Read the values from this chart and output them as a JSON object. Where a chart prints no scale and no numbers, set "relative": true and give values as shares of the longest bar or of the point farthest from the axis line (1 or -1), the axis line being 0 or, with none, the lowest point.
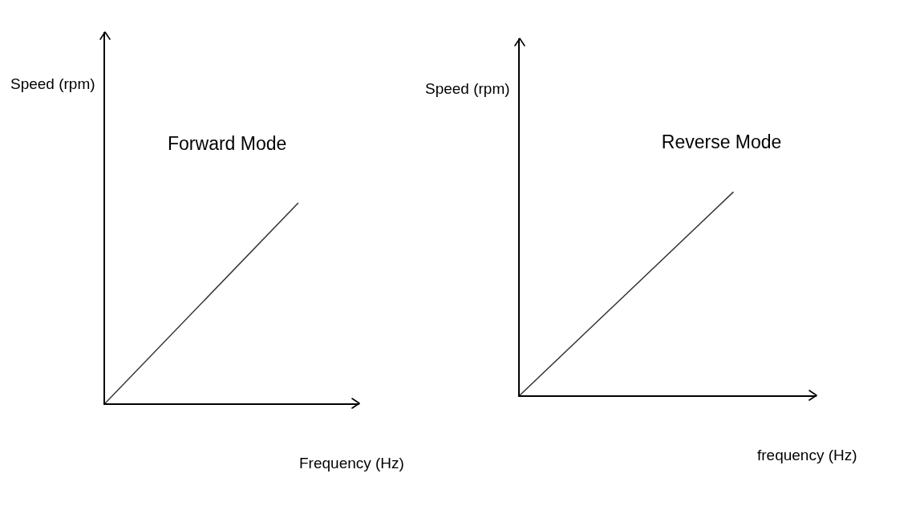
{
  "chart_data": [
    {
      "type": "line",
      "title": "Forward Mode",
      "xlabel": "Frequency (Hz)",
      "ylabel": "Speed (rpm)",
      "categories": [
        null,
        null
      ],
      "series": [
        {
          "color": "#333333",
          "values": [
            0,
            1
          ]
        }
      ],
      "relative": true
    },
    {
      "type": "line",
      "title": "Reverse Mode",
      "xlabel": "frequency (Hz)",
      "ylabel": "Speed (rpm)",
      "categories": [
        null,
        null
      ],
      "series": [
        {
          "color": "#333333",
          "values": [
            0,
            1
          ]
        }
      ],
      "relative": true
    }
  ]
}
